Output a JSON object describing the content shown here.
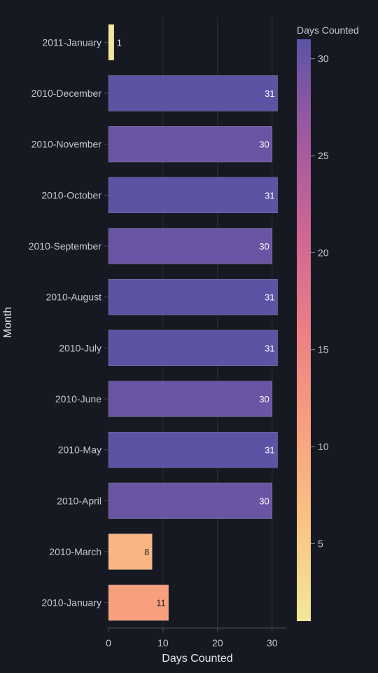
{
  "chart_data": {
    "type": "bar",
    "orientation": "horizontal",
    "categories": [
      "2011-January",
      "2010-December",
      "2010-November",
      "2010-October",
      "2010-September",
      "2010-August",
      "2010-July",
      "2010-June",
      "2010-May",
      "2010-April",
      "2010-March",
      "2010-January"
    ],
    "values": [
      1,
      31,
      30,
      31,
      30,
      31,
      31,
      30,
      31,
      30,
      8,
      11
    ],
    "title": "",
    "xlabel": "Days Counted",
    "ylabel": "Month",
    "xlim": [
      0,
      32.6
    ],
    "x_ticks": [
      0,
      10,
      20,
      30
    ],
    "x_tick_labels": [
      "0",
      "10",
      "20",
      "30"
    ],
    "grid": {
      "x": true,
      "y": false
    },
    "colorbar": {
      "title": "Days Counted",
      "range": [
        1,
        31
      ],
      "ticks": [
        5,
        10,
        15,
        20,
        25,
        30
      ],
      "tick_labels": [
        "5",
        "10",
        "15",
        "20",
        "25",
        "30"
      ],
      "placement": "right",
      "colorscale": [
        "#f3e79b",
        "#fac484",
        "#f8a07e",
        "#eb7f86",
        "#ce6693",
        "#a059a0",
        "#5c53a5"
      ]
    },
    "colors": {
      "background": "#161922",
      "grid": "#2c303b",
      "axis_line": "#4a4e59"
    }
  }
}
